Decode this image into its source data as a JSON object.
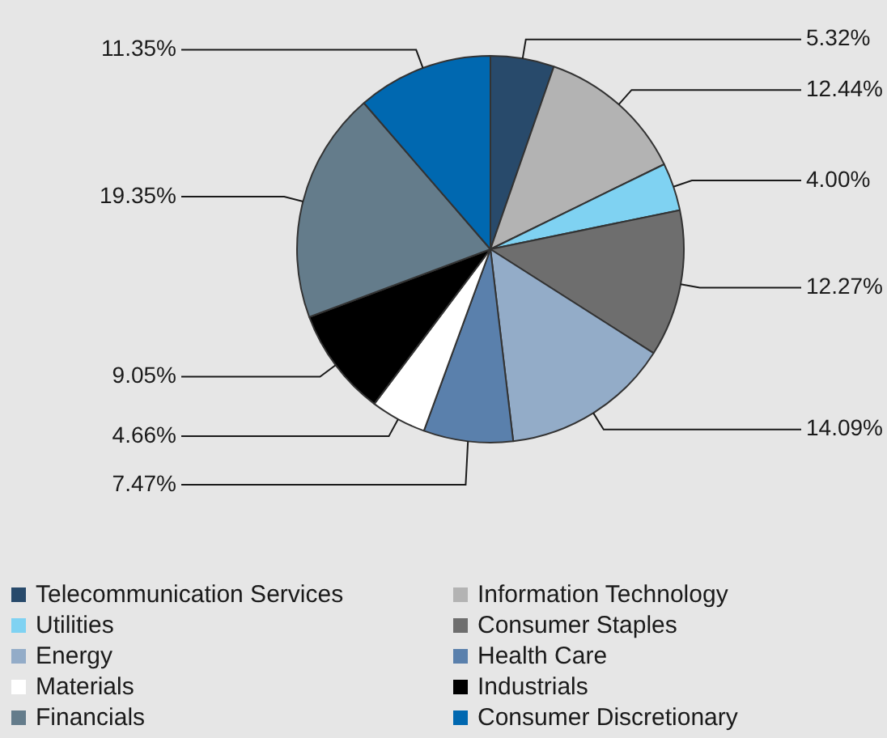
{
  "chart_data": {
    "type": "pie",
    "categories": [
      "Telecommunication Services",
      "Information Technology",
      "Utilities",
      "Consumer Staples",
      "Energy",
      "Health Care",
      "Materials",
      "Industrials",
      "Financials",
      "Consumer Discretionary"
    ],
    "values": [
      5.32,
      12.44,
      4.0,
      12.27,
      14.09,
      7.47,
      4.66,
      9.05,
      19.35,
      11.35
    ],
    "colors": [
      "#284a6b",
      "#b3b3b3",
      "#7fd2f2",
      "#6e6e6e",
      "#93acc8",
      "#5a80ac",
      "#ffffff",
      "#000000",
      "#647c8b",
      "#0068b0"
    ],
    "value_labels": [
      "5.32%",
      "12.44%",
      "4.00%",
      "12.27%",
      "14.09%",
      "7.47%",
      "4.66%",
      "9.05%",
      "19.35%",
      "11.35%"
    ],
    "legend": "bottom"
  }
}
